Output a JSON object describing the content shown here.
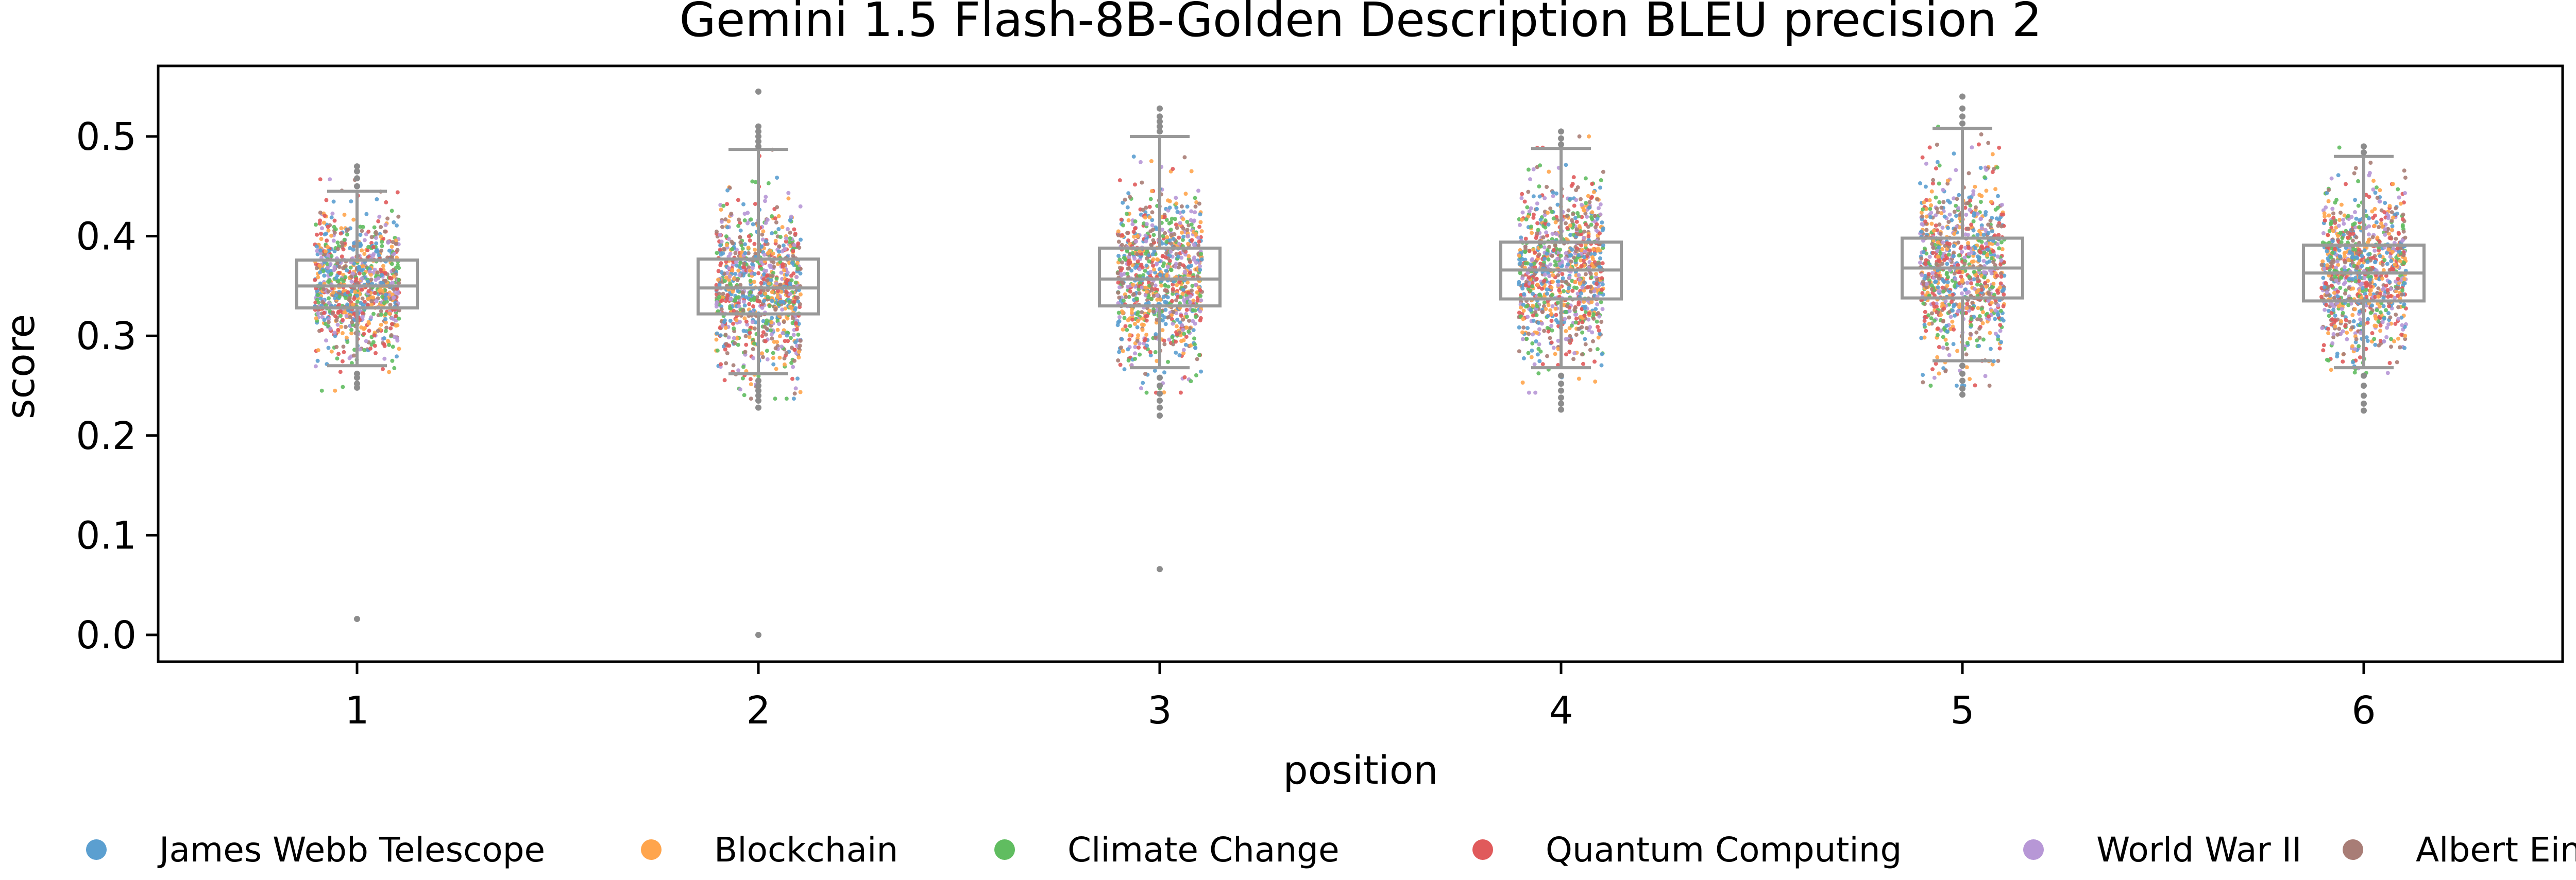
{
  "chart_data": {
    "type": "box-strip",
    "title": "Gemini 1.5 Flash-8B-Golden Description BLEU precision 2",
    "xlabel": "position",
    "ylabel": "score",
    "ylim": [
      -0.025,
      0.57
    ],
    "yticks": [
      "0.0",
      "0.1",
      "0.2",
      "0.3",
      "0.4",
      "0.5"
    ],
    "ytick_values": [
      0.0,
      0.1,
      0.2,
      0.3,
      0.4,
      0.5
    ],
    "categories": [
      "1",
      "2",
      "3",
      "4",
      "5",
      "6"
    ],
    "box_stats": [
      {
        "position": "1",
        "whisker_low": 0.27,
        "q1": 0.328,
        "median": 0.35,
        "q3": 0.376,
        "whisker_high": 0.445
      },
      {
        "position": "2",
        "whisker_low": 0.262,
        "q1": 0.322,
        "median": 0.348,
        "q3": 0.377,
        "whisker_high": 0.487
      },
      {
        "position": "3",
        "whisker_low": 0.268,
        "q1": 0.33,
        "median": 0.357,
        "q3": 0.388,
        "whisker_high": 0.5
      },
      {
        "position": "4",
        "whisker_low": 0.268,
        "q1": 0.337,
        "median": 0.366,
        "q3": 0.394,
        "whisker_high": 0.488
      },
      {
        "position": "5",
        "whisker_low": 0.275,
        "q1": 0.338,
        "median": 0.368,
        "q3": 0.398,
        "whisker_high": 0.508
      },
      {
        "position": "6",
        "whisker_low": 0.268,
        "q1": 0.335,
        "median": 0.363,
        "q3": 0.391,
        "whisker_high": 0.48
      }
    ],
    "outliers": [
      {
        "position": "1",
        "values": [
          0.016,
          0.248,
          0.252,
          0.258,
          0.262,
          0.45,
          0.458,
          0.465,
          0.47
        ]
      },
      {
        "position": "2",
        "values": [
          0.0,
          0.228,
          0.235,
          0.24,
          0.245,
          0.25,
          0.255,
          0.49,
          0.495,
          0.5,
          0.505,
          0.51,
          0.545
        ]
      },
      {
        "position": "3",
        "values": [
          0.066,
          0.22,
          0.228,
          0.235,
          0.242,
          0.25,
          0.258,
          0.505,
          0.51,
          0.515,
          0.52,
          0.528
        ]
      },
      {
        "position": "4",
        "values": [
          0.226,
          0.232,
          0.238,
          0.245,
          0.252,
          0.26,
          0.492,
          0.498,
          0.505
        ]
      },
      {
        "position": "5",
        "values": [
          0.241,
          0.247,
          0.255,
          0.262,
          0.27,
          0.513,
          0.52,
          0.528,
          0.54
        ]
      },
      {
        "position": "6",
        "values": [
          0.225,
          0.232,
          0.24,
          0.25,
          0.26,
          0.484,
          0.49
        ]
      }
    ],
    "series": [
      {
        "name": "James Webb Telescope",
        "color": "#5b9fd0"
      },
      {
        "name": "Blockchain",
        "color": "#ffa54d"
      },
      {
        "name": "Climate Change",
        "color": "#60bd60"
      },
      {
        "name": "Quantum Computing",
        "color": "#e05a5b"
      },
      {
        "name": "World War II",
        "color": "#b797d6"
      },
      {
        "name": "Albert Einstein",
        "color": "#a87d76"
      }
    ],
    "box_color": "#999999",
    "legend_position": "bottom",
    "grid": false
  }
}
